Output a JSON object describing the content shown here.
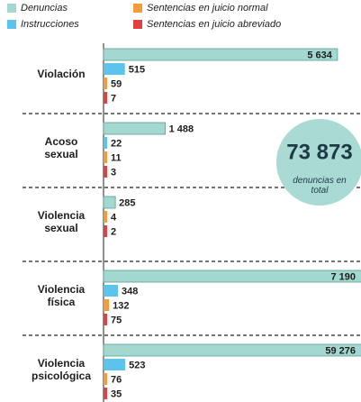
{
  "chart_data": {
    "type": "bar",
    "orientation": "horizontal",
    "categories": [
      "Violación",
      "Acoso sexual",
      "Violencia sexual",
      "Violencia física",
      "Violencia psicológica"
    ],
    "series": [
      {
        "name": "Denuncias",
        "color": "#a3d8d0",
        "values": [
          5634,
          1488,
          285,
          7190,
          59276
        ],
        "value_labels": [
          "5 634",
          "1 488",
          "285",
          "7 190",
          "59 276"
        ]
      },
      {
        "name": "Instrucciones",
        "color": "#5cc4ec",
        "values": [
          515,
          22,
          null,
          348,
          523
        ]
      },
      {
        "name": "Sentencias en juicio normal",
        "color": "#f59b3a",
        "values": [
          59,
          11,
          4,
          132,
          76
        ]
      },
      {
        "name": "Sentencias en juicio abreviado",
        "color": "#e2403f",
        "values": [
          7,
          3,
          2,
          75,
          35
        ]
      }
    ],
    "xlim": [
      0,
      6200
    ],
    "total_label": "73 873",
    "total_caption": "denuncias en total"
  }
}
